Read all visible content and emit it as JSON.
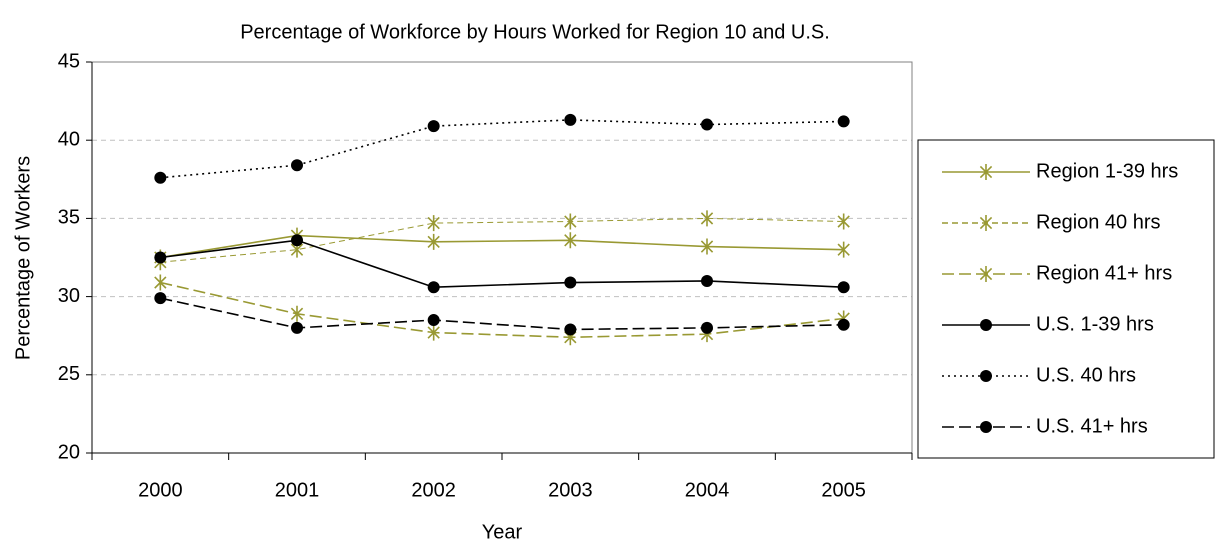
{
  "chart_data": {
    "type": "line",
    "title": "Percentage of Workforce by Hours Worked for Region 10 and U.S.",
    "x_label": "Year",
    "y_label": "Percentage of Workers",
    "categories": [
      "2000",
      "2001",
      "2002",
      "2003",
      "2004",
      "2005"
    ],
    "ylim": [
      20,
      45
    ],
    "yticks": [
      20,
      25,
      30,
      35,
      40,
      45
    ],
    "grid": true,
    "legend": "right",
    "series": [
      {
        "name": "Region 1-39 hrs",
        "color": "#999933",
        "dash": "solid",
        "marker": "star",
        "values": [
          32.5,
          33.9,
          33.5,
          33.6,
          33.2,
          33.0
        ]
      },
      {
        "name": "Region 40 hrs",
        "color": "#999933",
        "dash": "dashed",
        "marker": "star",
        "values": [
          32.2,
          33.0,
          34.7,
          34.8,
          35.0,
          34.8
        ]
      },
      {
        "name": "Region 41+ hrs",
        "color": "#999933",
        "dash": "longdash",
        "marker": "star",
        "values": [
          30.9,
          28.9,
          27.7,
          27.4,
          27.6,
          28.6
        ]
      },
      {
        "name": "U.S. 1-39 hrs",
        "color": "#000000",
        "dash": "solid",
        "marker": "circle",
        "values": [
          32.5,
          33.6,
          30.6,
          30.9,
          31.0,
          30.6
        ]
      },
      {
        "name": "U.S. 40 hrs",
        "color": "#000000",
        "dash": "dotted",
        "marker": "circle",
        "values": [
          37.6,
          38.4,
          40.9,
          41.3,
          41.0,
          41.2
        ]
      },
      {
        "name": "U.S. 41+ hrs",
        "color": "#000000",
        "dash": "longdash",
        "marker": "circle",
        "values": [
          29.9,
          28.0,
          28.5,
          27.9,
          28.0,
          28.2
        ]
      }
    ]
  }
}
